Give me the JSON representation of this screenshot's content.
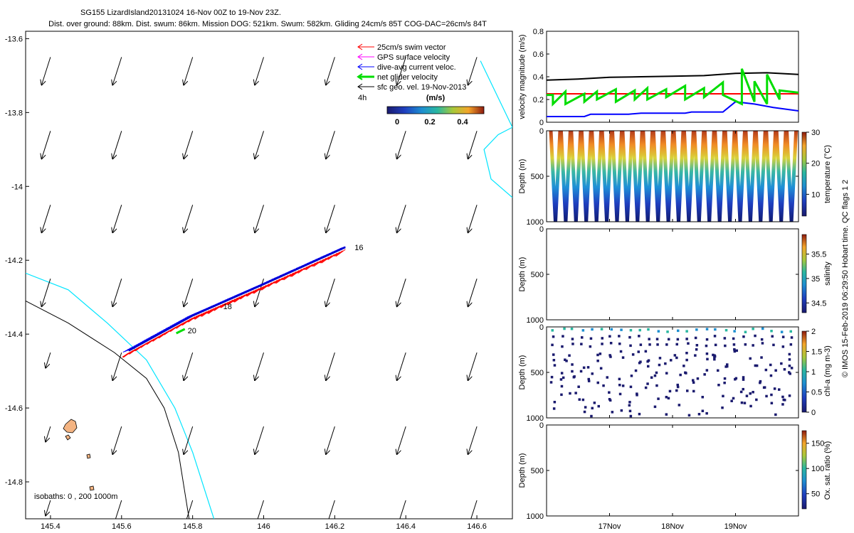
{
  "header": {
    "title": "SG155 LizardIsland20131024 16-Nov 00Z to 19-Nov 23Z.",
    "subtitle": "Dist. over ground: 88km. Dist. swum: 86km. Mission DOG: 521km. Swum: 582km. Gliding 24cm/s 85T COG-DAC=26cm/s 84T"
  },
  "side_label": "© IMOS 15-Feb-2019 06:29:50 Hobart time. QC flags 1  2",
  "colors": {
    "swim": "#ff0000",
    "gps": "#ff00ff",
    "dac": "#0000ff",
    "net": "#00dd00",
    "sfc": "#000000",
    "isobath200": "#000000",
    "isobath1000": "#00e5ff",
    "island": "#f4b482"
  },
  "chart_data": [
    {
      "type": "map",
      "xlim": [
        145.33,
        146.7
      ],
      "ylim": [
        -14.9,
        -13.58
      ],
      "xticks": [
        145.4,
        145.6,
        145.8,
        146,
        146.2,
        146.4,
        146.6
      ],
      "xtick_labels": [
        "145.4",
        "145.6",
        "145.8",
        "146",
        "146.2",
        "146.4",
        "146.6"
      ],
      "yticks": [
        -13.6,
        -13.8,
        -14,
        -14.2,
        -14.4,
        -14.6,
        -14.8
      ],
      "ytick_labels": [
        "-13.6",
        "-13.8",
        "-14",
        "-14.2",
        "-14.4",
        "-14.6",
        "-14.8"
      ],
      "legend": [
        {
          "label": "25cm/s swim vector",
          "color": "#ff0000"
        },
        {
          "label": "GPS surface velocity",
          "color": "#ff00ff"
        },
        {
          "label": "dive-avg current veloc.",
          "color": "#0000ff"
        },
        {
          "label": "net glider velocity",
          "color": "#00dd00"
        },
        {
          "label": "sfc geo. vel. 19-Nov-2013",
          "color": "#000000"
        }
      ],
      "colorbar": {
        "label": "(m/s)",
        "time_label": "4h",
        "ticks": [
          "0",
          "0.2",
          "0.4"
        ],
        "range": [
          0,
          0.5
        ]
      },
      "track": [
        [
          145.62,
          -14.445
        ],
        [
          145.8,
          -14.35
        ],
        [
          146.0,
          -14.265
        ],
        [
          146.23,
          -14.165
        ]
      ],
      "day_labels": [
        {
          "text": "16",
          "lon": 146.24,
          "lat": -14.165
        },
        {
          "text": "18",
          "lon": 145.87,
          "lat": -14.325
        },
        {
          "text": "20",
          "lon": 145.77,
          "lat": -14.39
        }
      ],
      "isobath_label": "isobaths: 0 , 200  1000m",
      "coast_200": [
        [
          145.33,
          -14.31
        ],
        [
          145.45,
          -14.37
        ],
        [
          145.58,
          -14.45
        ],
        [
          145.67,
          -14.52
        ],
        [
          145.72,
          -14.6
        ],
        [
          145.76,
          -14.72
        ],
        [
          145.78,
          -14.84
        ],
        [
          145.79,
          -14.9
        ]
      ],
      "coast_1000": [
        [
          145.33,
          -14.235
        ],
        [
          145.45,
          -14.28
        ],
        [
          145.56,
          -14.37
        ],
        [
          145.67,
          -14.47
        ],
        [
          145.75,
          -14.6
        ],
        [
          145.8,
          -14.72
        ],
        [
          145.84,
          -14.84
        ],
        [
          145.86,
          -14.9
        ]
      ],
      "reef_line": [
        [
          146.61,
          -13.66
        ],
        [
          146.66,
          -13.76
        ],
        [
          146.7,
          -13.84
        ],
        [
          146.66,
          -13.86
        ],
        [
          146.62,
          -13.9
        ],
        [
          146.64,
          -13.98
        ],
        [
          146.7,
          -14.03
        ]
      ],
      "vectors": {
        "lons": [
          145.4,
          145.6,
          145.8,
          146.0,
          146.2,
          146.4,
          146.6
        ],
        "lats": [
          -13.65,
          -13.85,
          -14.05,
          -14.25,
          -14.45,
          -14.65,
          -14.85
        ],
        "dlon": -0.025,
        "dlat": -0.075
      }
    },
    {
      "type": "line",
      "ylabel": "velocity magnitude (m/s)",
      "ylim": [
        0,
        0.8
      ],
      "yticks": [
        0,
        0.2,
        0.4,
        0.6,
        0.8
      ],
      "xlim": [
        16.0,
        20.0
      ],
      "series": [
        {
          "name": "sfc geo. vel.",
          "color": "#000000",
          "x": [
            16.0,
            16.5,
            17.0,
            17.5,
            18.0,
            18.5,
            19.0,
            19.5,
            20.0
          ],
          "y": [
            0.37,
            0.38,
            0.395,
            0.4,
            0.405,
            0.41,
            0.43,
            0.435,
            0.42
          ]
        },
        {
          "name": "25cm/s swim",
          "color": "#ff0000",
          "x": [
            16.0,
            20.0
          ],
          "y": [
            0.25,
            0.25
          ]
        },
        {
          "name": "dive-avg current",
          "color": "#0000ff",
          "x": [
            16.0,
            16.6,
            16.7,
            17.3,
            17.5,
            18.2,
            18.3,
            18.8,
            19.0,
            19.3,
            19.6,
            20.0
          ],
          "y": [
            0.05,
            0.05,
            0.07,
            0.07,
            0.08,
            0.08,
            0.09,
            0.09,
            0.18,
            0.16,
            0.13,
            0.1
          ]
        },
        {
          "name": "net glider",
          "color": "#00dd00",
          "x": [
            16.0,
            16.1,
            16.1,
            16.3,
            16.3,
            16.6,
            16.6,
            16.8,
            16.8,
            17.1,
            17.1,
            17.4,
            17.4,
            17.6,
            17.6,
            17.9,
            17.9,
            18.2,
            18.2,
            18.5,
            18.5,
            18.8,
            18.8,
            19.1,
            19.1,
            19.3,
            19.3,
            19.5,
            19.5,
            19.7,
            19.7,
            20.0
          ],
          "y": [
            0.24,
            0.24,
            0.16,
            0.27,
            0.16,
            0.25,
            0.18,
            0.27,
            0.2,
            0.29,
            0.18,
            0.28,
            0.2,
            0.3,
            0.2,
            0.29,
            0.22,
            0.32,
            0.2,
            0.3,
            0.22,
            0.35,
            0.24,
            0.16,
            0.47,
            0.18,
            0.36,
            0.16,
            0.42,
            0.2,
            0.28,
            0.26
          ]
        }
      ]
    },
    {
      "type": "heatmap",
      "ylabel": "Depth (m)",
      "ylim": [
        1000,
        0
      ],
      "yticks": [
        0,
        500,
        1000
      ],
      "colorbar_label": "temperature (°C)",
      "colorbar_ticks": [
        10,
        20,
        30
      ],
      "colorbar_range": [
        3,
        30
      ],
      "dives": 24,
      "max_depth": 1000
    },
    {
      "type": "heatmap",
      "ylabel": "Depth (m)",
      "ylim": [
        1000,
        0
      ],
      "yticks": [
        0,
        500,
        1000
      ],
      "colorbar_label": "salinity",
      "colorbar_ticks": [
        34.5,
        35,
        35.5
      ],
      "colorbar_range": [
        34.3,
        35.9
      ]
    },
    {
      "type": "scatter",
      "ylabel": "Depth (m)",
      "ylim": [
        1000,
        0
      ],
      "yticks": [
        0,
        500,
        1000
      ],
      "colorbar_label": "chl-a (mg m-3)",
      "colorbar_ticks": [
        0,
        0.5,
        1,
        1.5,
        2
      ],
      "colorbar_range": [
        0,
        2
      ]
    },
    {
      "type": "heatmap",
      "ylabel": "Depth (m)",
      "ylim": [
        1000,
        0
      ],
      "yticks": [
        0,
        500,
        1000
      ],
      "colorbar_label": "Ox. sat. ratio (%)",
      "colorbar_ticks": [
        50,
        100,
        150
      ],
      "colorbar_range": [
        20,
        175
      ],
      "xticks": [
        "17Nov",
        "18Nov",
        "19Nov"
      ],
      "xtick_values": [
        17,
        18,
        19
      ]
    }
  ]
}
